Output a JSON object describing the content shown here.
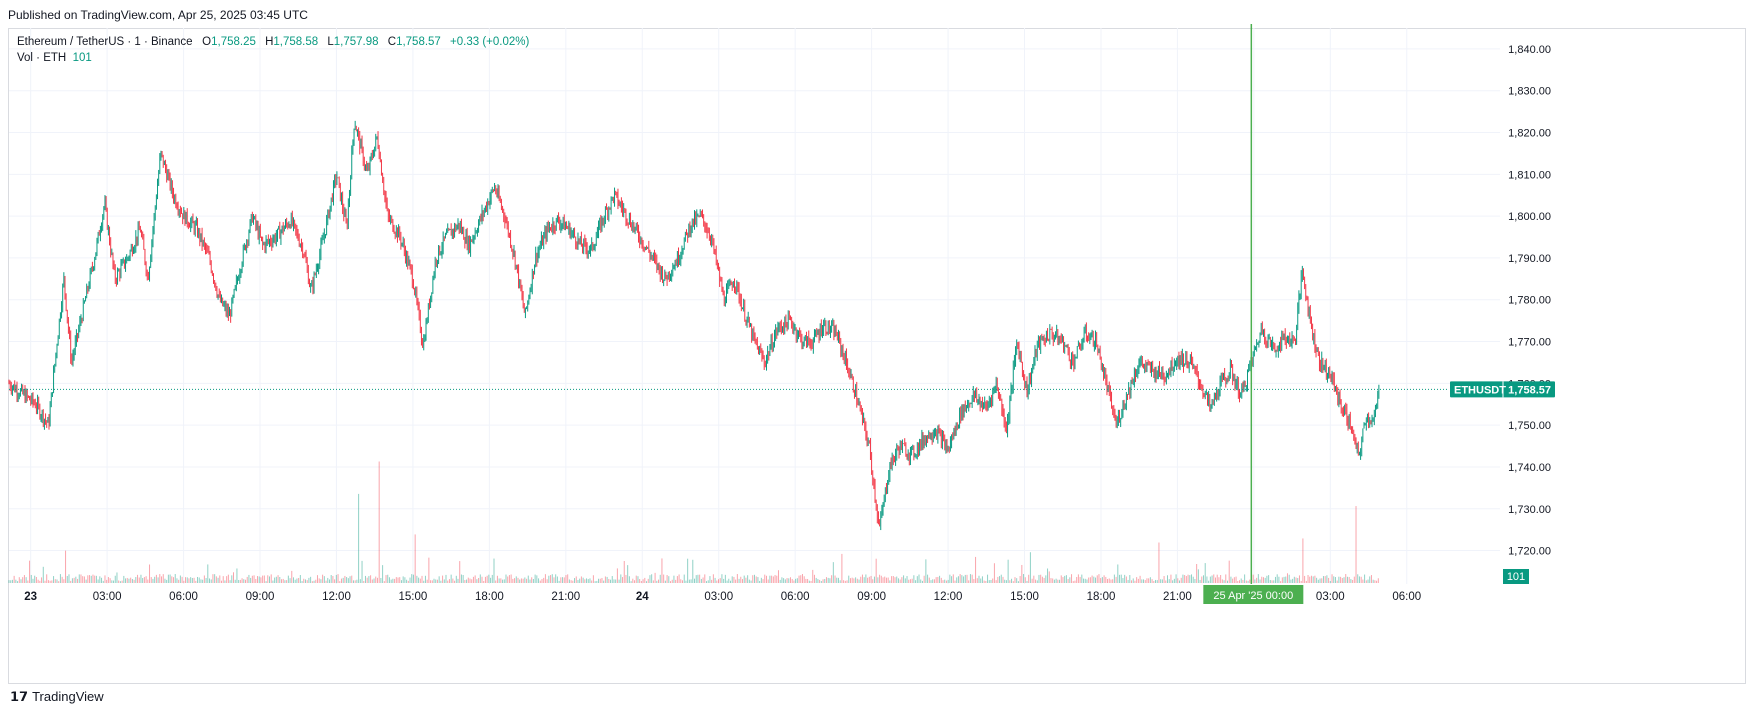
{
  "header": {
    "published": "Published on TradingView.com, Apr 25, 2025 03:45 UTC"
  },
  "legend": {
    "symbol": "Ethereum / TetherUS · 1 · Binance",
    "o_label": "O",
    "o_value": "1,758.25",
    "h_label": "H",
    "h_value": "1,758.58",
    "l_label": "L",
    "l_value": "1,757.98",
    "c_label": "C",
    "c_value": "1,758.57",
    "change": "+0.33 (+0.02%)",
    "vol_label": "Vol · ETH",
    "vol_value": "101"
  },
  "price_tag": {
    "symbol": "ETHUSDT",
    "value": "1,758.57"
  },
  "vol_tag": "101",
  "crosshair_label": "25 Apr '25   00:00",
  "footer": {
    "brand": "TradingView"
  },
  "colors": {
    "up": "#089981",
    "down": "#f23645",
    "crosshair": "#4caf50",
    "grid": "#f0f3fa"
  },
  "chart_data": {
    "type": "candlestick",
    "ylim": [
      1712,
      1845
    ],
    "y_ticks": [
      "1,840.00",
      "1,830.00",
      "1,820.00",
      "1,810.00",
      "1,800.00",
      "1,790.00",
      "1,780.00",
      "1,770.00",
      "1,760.00",
      "1,750.00",
      "1,740.00",
      "1,730.00",
      "1,720.00"
    ],
    "y_tick_values": [
      1840,
      1830,
      1820,
      1810,
      1800,
      1790,
      1780,
      1770,
      1760,
      1750,
      1740,
      1730,
      1720
    ],
    "x_ticks": [
      "23",
      "03:00",
      "06:00",
      "09:00",
      "12:00",
      "15:00",
      "18:00",
      "21:00",
      "24",
      "03:00",
      "06:00",
      "09:00",
      "12:00",
      "15:00",
      "18:00",
      "21:00",
      "25 Apr '25",
      "03:00",
      "06:00"
    ],
    "x_tick_hours": [
      0,
      3,
      6,
      9,
      12,
      15,
      18,
      21,
      24,
      27,
      30,
      33,
      36,
      39,
      42,
      45,
      48,
      51,
      54
    ],
    "x_range_hours": [
      -0.85,
      55.5
    ],
    "series_end_hour": 50.9,
    "crosshair_hour": 47.9,
    "last_price": 1758.57,
    "price_path": [
      [
        -0.85,
        1760
      ],
      [
        0.2,
        1755
      ],
      [
        0.7,
        1750
      ],
      [
        1.0,
        1768
      ],
      [
        1.3,
        1785
      ],
      [
        1.6,
        1765
      ],
      [
        2.0,
        1776
      ],
      [
        2.5,
        1790
      ],
      [
        2.9,
        1803
      ],
      [
        3.3,
        1785
      ],
      [
        3.8,
        1790
      ],
      [
        4.3,
        1797
      ],
      [
        4.6,
        1785
      ],
      [
        5.1,
        1815
      ],
      [
        5.6,
        1805
      ],
      [
        6.0,
        1800
      ],
      [
        6.5,
        1797
      ],
      [
        7.0,
        1790
      ],
      [
        7.4,
        1780
      ],
      [
        7.8,
        1776
      ],
      [
        8.3,
        1790
      ],
      [
        8.7,
        1800
      ],
      [
        9.1,
        1793
      ],
      [
        9.6,
        1795
      ],
      [
        10.2,
        1799
      ],
      [
        10.7,
        1792
      ],
      [
        11.0,
        1782
      ],
      [
        11.5,
        1795
      ],
      [
        12.0,
        1810
      ],
      [
        12.4,
        1797
      ],
      [
        12.7,
        1823
      ],
      [
        13.2,
        1810
      ],
      [
        13.6,
        1819
      ],
      [
        14.0,
        1800
      ],
      [
        14.5,
        1795
      ],
      [
        15.0,
        1785
      ],
      [
        15.4,
        1769
      ],
      [
        15.9,
        1790
      ],
      [
        16.3,
        1795
      ],
      [
        16.8,
        1798
      ],
      [
        17.2,
        1793
      ],
      [
        17.7,
        1800
      ],
      [
        18.2,
        1807
      ],
      [
        18.6,
        1800
      ],
      [
        19.0,
        1790
      ],
      [
        19.4,
        1776
      ],
      [
        19.8,
        1790
      ],
      [
        20.3,
        1797
      ],
      [
        20.7,
        1799
      ],
      [
        21.1,
        1797
      ],
      [
        21.6,
        1793
      ],
      [
        22.0,
        1792
      ],
      [
        22.5,
        1800
      ],
      [
        22.9,
        1805
      ],
      [
        23.4,
        1800
      ],
      [
        23.9,
        1795
      ],
      [
        24.4,
        1790
      ],
      [
        24.9,
        1785
      ],
      [
        25.4,
        1790
      ],
      [
        25.9,
        1798
      ],
      [
        26.3,
        1800
      ],
      [
        26.7,
        1795
      ],
      [
        27.2,
        1780
      ],
      [
        27.6,
        1785
      ],
      [
        28.0,
        1777
      ],
      [
        28.4,
        1770
      ],
      [
        28.8,
        1765
      ],
      [
        29.3,
        1773
      ],
      [
        29.8,
        1775
      ],
      [
        30.3,
        1770
      ],
      [
        30.7,
        1770
      ],
      [
        31.1,
        1774
      ],
      [
        31.6,
        1772
      ],
      [
        32.0,
        1765
      ],
      [
        32.4,
        1757
      ],
      [
        32.9,
        1745
      ],
      [
        33.3,
        1725
      ],
      [
        33.7,
        1740
      ],
      [
        34.1,
        1745
      ],
      [
        34.6,
        1743
      ],
      [
        35.1,
        1747
      ],
      [
        35.5,
        1749
      ],
      [
        36.0,
        1744
      ],
      [
        36.5,
        1753
      ],
      [
        37.0,
        1757
      ],
      [
        37.5,
        1754
      ],
      [
        37.9,
        1760
      ],
      [
        38.3,
        1749
      ],
      [
        38.7,
        1770
      ],
      [
        39.1,
        1758
      ],
      [
        39.5,
        1769
      ],
      [
        40.0,
        1772
      ],
      [
        40.5,
        1770
      ],
      [
        40.9,
        1765
      ],
      [
        41.4,
        1772
      ],
      [
        41.8,
        1770
      ],
      [
        42.2,
        1760
      ],
      [
        42.6,
        1750
      ],
      [
        43.0,
        1757
      ],
      [
        43.5,
        1765
      ],
      [
        44.0,
        1763
      ],
      [
        44.5,
        1762
      ],
      [
        45.0,
        1766
      ],
      [
        45.5,
        1765
      ],
      [
        45.9,
        1760
      ],
      [
        46.3,
        1754
      ],
      [
        46.7,
        1760
      ],
      [
        47.1,
        1763
      ],
      [
        47.5,
        1757
      ],
      [
        47.9,
        1765
      ],
      [
        48.3,
        1773
      ],
      [
        48.8,
        1768
      ],
      [
        49.2,
        1771
      ],
      [
        49.6,
        1770
      ],
      [
        49.9,
        1787
      ],
      [
        50.3,
        1772
      ],
      [
        50.6,
        1765
      ],
      [
        51.0,
        1762
      ],
      [
        51.4,
        1755
      ],
      [
        51.8,
        1750
      ],
      [
        52.1,
        1742
      ],
      [
        52.4,
        1752
      ],
      [
        52.7,
        1751
      ],
      [
        52.95,
        1758.5
      ]
    ],
    "price_path_note": "",
    "volume_spikes": [
      [
        0.5,
        20
      ],
      [
        1.4,
        40
      ],
      [
        13.7,
        150
      ],
      [
        12.9,
        110
      ],
      [
        15.1,
        60
      ],
      [
        25.8,
        30
      ],
      [
        33.2,
        30
      ],
      [
        39.2,
        38
      ],
      [
        44.3,
        50
      ],
      [
        49.9,
        55
      ],
      [
        52.0,
        95
      ]
    ]
  }
}
